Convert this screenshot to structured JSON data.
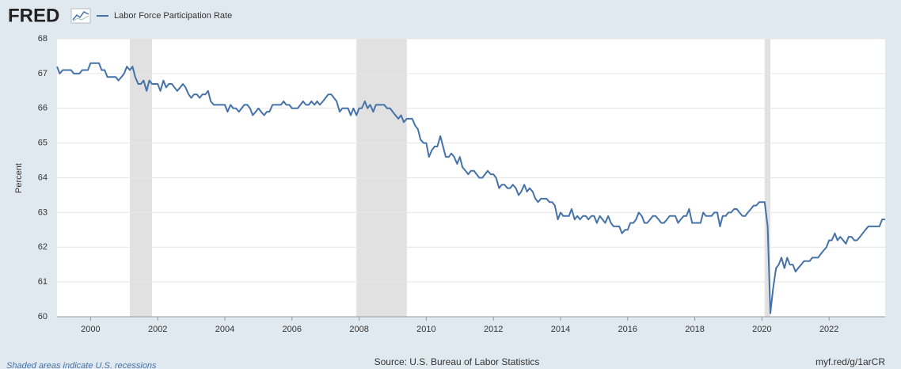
{
  "logo": "FRED",
  "chart_data": {
    "type": "line",
    "y_label": "Percent",
    "note": "Shaded areas indicate U.S. recessions",
    "source": "Source: U.S. Bureau of Labor Statistics",
    "link": "myf.red/g/1arCR",
    "xlim": [
      1999,
      2023.67
    ],
    "xticks": [
      2000,
      2002,
      2004,
      2006,
      2008,
      2010,
      2012,
      2014,
      2016,
      2018,
      2020,
      2022
    ],
    "ylim": [
      60,
      68
    ],
    "yticks": [
      60,
      61,
      62,
      63,
      64,
      65,
      66,
      67,
      68
    ],
    "grid": true,
    "recession_color": "#e1e1e1",
    "recessions": [
      [
        2001.17,
        2001.83
      ],
      [
        2007.92,
        2009.42
      ],
      [
        2020.08,
        2020.25
      ]
    ],
    "x": [
      1999,
      1999.08,
      1999.17,
      1999.25,
      1999.33,
      1999.42,
      1999.5,
      1999.58,
      1999.67,
      1999.75,
      1999.83,
      1999.92,
      2000,
      2000.08,
      2000.17,
      2000.25,
      2000.33,
      2000.42,
      2000.5,
      2000.58,
      2000.67,
      2000.75,
      2000.83,
      2000.92,
      2001,
      2001.08,
      2001.17,
      2001.25,
      2001.33,
      2001.42,
      2001.5,
      2001.58,
      2001.67,
      2001.75,
      2001.83,
      2001.92,
      2002,
      2002.08,
      2002.17,
      2002.25,
      2002.33,
      2002.42,
      2002.5,
      2002.58,
      2002.67,
      2002.75,
      2002.83,
      2002.92,
      2003,
      2003.08,
      2003.17,
      2003.25,
      2003.33,
      2003.42,
      2003.5,
      2003.58,
      2003.67,
      2003.75,
      2003.83,
      2003.92,
      2004,
      2004.08,
      2004.17,
      2004.25,
      2004.33,
      2004.42,
      2004.5,
      2004.58,
      2004.67,
      2004.75,
      2004.83,
      2004.92,
      2005,
      2005.08,
      2005.17,
      2005.25,
      2005.33,
      2005.42,
      2005.5,
      2005.58,
      2005.67,
      2005.75,
      2005.83,
      2005.92,
      2006,
      2006.08,
      2006.17,
      2006.25,
      2006.33,
      2006.42,
      2006.5,
      2006.58,
      2006.67,
      2006.75,
      2006.83,
      2006.92,
      2007,
      2007.08,
      2007.17,
      2007.25,
      2007.33,
      2007.42,
      2007.5,
      2007.58,
      2007.67,
      2007.75,
      2007.83,
      2007.92,
      2008,
      2008.08,
      2008.17,
      2008.25,
      2008.33,
      2008.42,
      2008.5,
      2008.58,
      2008.67,
      2008.75,
      2008.83,
      2008.92,
      2009,
      2009.08,
      2009.17,
      2009.25,
      2009.33,
      2009.42,
      2009.5,
      2009.58,
      2009.67,
      2009.75,
      2009.83,
      2009.92,
      2010,
      2010.08,
      2010.17,
      2010.25,
      2010.33,
      2010.42,
      2010.5,
      2010.58,
      2010.67,
      2010.75,
      2010.83,
      2010.92,
      2011,
      2011.08,
      2011.17,
      2011.25,
      2011.33,
      2011.42,
      2011.5,
      2011.58,
      2011.67,
      2011.75,
      2011.83,
      2011.92,
      2012,
      2012.08,
      2012.17,
      2012.25,
      2012.33,
      2012.42,
      2012.5,
      2012.58,
      2012.67,
      2012.75,
      2012.83,
      2012.92,
      2013,
      2013.08,
      2013.17,
      2013.25,
      2013.33,
      2013.42,
      2013.5,
      2013.58,
      2013.67,
      2013.75,
      2013.83,
      2013.92,
      2014,
      2014.08,
      2014.17,
      2014.25,
      2014.33,
      2014.42,
      2014.5,
      2014.58,
      2014.67,
      2014.75,
      2014.83,
      2014.92,
      2015,
      2015.08,
      2015.17,
      2015.25,
      2015.33,
      2015.42,
      2015.5,
      2015.58,
      2015.67,
      2015.75,
      2015.83,
      2015.92,
      2016,
      2016.08,
      2016.17,
      2016.25,
      2016.33,
      2016.42,
      2016.5,
      2016.58,
      2016.67,
      2016.75,
      2016.83,
      2016.92,
      2017,
      2017.08,
      2017.17,
      2017.25,
      2017.33,
      2017.42,
      2017.5,
      2017.58,
      2017.67,
      2017.75,
      2017.83,
      2017.92,
      2018,
      2018.08,
      2018.17,
      2018.25,
      2018.33,
      2018.42,
      2018.5,
      2018.58,
      2018.67,
      2018.75,
      2018.83,
      2018.92,
      2019,
      2019.08,
      2019.17,
      2019.25,
      2019.33,
      2019.42,
      2019.5,
      2019.58,
      2019.67,
      2019.75,
      2019.83,
      2019.92,
      2020,
      2020.08,
      2020.17,
      2020.25,
      2020.33,
      2020.42,
      2020.5,
      2020.58,
      2020.67,
      2020.75,
      2020.83,
      2020.92,
      2021,
      2021.08,
      2021.17,
      2021.25,
      2021.33,
      2021.42,
      2021.5,
      2021.58,
      2021.67,
      2021.75,
      2021.83,
      2021.92,
      2022,
      2022.08,
      2022.17,
      2022.25,
      2022.33,
      2022.42,
      2022.5,
      2022.58,
      2022.67,
      2022.75,
      2022.83,
      2022.92,
      2023,
      2023.08,
      2023.17,
      2023.25,
      2023.33,
      2023.42,
      2023.5,
      2023.58,
      2023.67
    ],
    "series": [
      {
        "name": "Labor Force Participation Rate",
        "color": "#4572a7",
        "values": [
          67.2,
          67.0,
          67.1,
          67.1,
          67.1,
          67.1,
          67.0,
          67.0,
          67.0,
          67.1,
          67.1,
          67.1,
          67.3,
          67.3,
          67.3,
          67.3,
          67.1,
          67.1,
          66.9,
          66.9,
          66.9,
          66.9,
          66.8,
          66.9,
          67.0,
          67.2,
          67.1,
          67.2,
          66.9,
          66.7,
          66.7,
          66.8,
          66.5,
          66.8,
          66.7,
          66.7,
          66.7,
          66.5,
          66.8,
          66.6,
          66.7,
          66.7,
          66.6,
          66.5,
          66.6,
          66.7,
          66.6,
          66.4,
          66.3,
          66.4,
          66.4,
          66.3,
          66.4,
          66.4,
          66.5,
          66.2,
          66.1,
          66.1,
          66.1,
          66.1,
          66.1,
          65.9,
          66.1,
          66.0,
          66.0,
          65.9,
          66.0,
          66.1,
          66.1,
          66.0,
          65.8,
          65.9,
          66.0,
          65.9,
          65.8,
          65.9,
          65.9,
          66.1,
          66.1,
          66.1,
          66.1,
          66.2,
          66.1,
          66.1,
          66.0,
          66.0,
          66.0,
          66.1,
          66.2,
          66.1,
          66.1,
          66.2,
          66.1,
          66.2,
          66.1,
          66.2,
          66.3,
          66.4,
          66.4,
          66.3,
          66.2,
          65.9,
          66.0,
          66.0,
          66.0,
          65.8,
          66.0,
          65.8,
          66.0,
          66.0,
          66.2,
          66.0,
          66.1,
          65.9,
          66.1,
          66.1,
          66.1,
          66.1,
          66.0,
          66.0,
          65.9,
          65.8,
          65.7,
          65.8,
          65.6,
          65.7,
          65.7,
          65.7,
          65.5,
          65.4,
          65.1,
          65.0,
          65.0,
          64.6,
          64.8,
          64.9,
          64.9,
          65.2,
          64.9,
          64.6,
          64.6,
          64.7,
          64.6,
          64.4,
          64.6,
          64.3,
          64.2,
          64.1,
          64.2,
          64.2,
          64.1,
          64.0,
          64.0,
          64.1,
          64.2,
          64.1,
          64.1,
          64.0,
          63.7,
          63.8,
          63.8,
          63.7,
          63.7,
          63.8,
          63.7,
          63.5,
          63.6,
          63.8,
          63.6,
          63.7,
          63.6,
          63.4,
          63.3,
          63.4,
          63.4,
          63.4,
          63.3,
          63.3,
          63.2,
          62.8,
          63.0,
          62.9,
          62.9,
          62.9,
          63.1,
          62.8,
          62.9,
          62.8,
          62.9,
          62.9,
          62.8,
          62.9,
          62.9,
          62.7,
          62.9,
          62.8,
          62.7,
          62.9,
          62.7,
          62.6,
          62.6,
          62.6,
          62.4,
          62.5,
          62.5,
          62.7,
          62.7,
          62.8,
          63.0,
          62.9,
          62.7,
          62.7,
          62.8,
          62.9,
          62.9,
          62.8,
          62.7,
          62.7,
          62.8,
          62.9,
          62.9,
          62.9,
          62.7,
          62.8,
          62.9,
          62.9,
          63.1,
          62.7,
          62.7,
          62.7,
          62.7,
          63.0,
          62.9,
          62.9,
          62.9,
          63.0,
          63.0,
          62.6,
          62.9,
          62.9,
          63.0,
          63.0,
          63.1,
          63.1,
          63.0,
          62.9,
          62.9,
          63.0,
          63.1,
          63.2,
          63.2,
          63.3,
          63.3,
          63.3,
          62.6,
          60.1,
          60.8,
          61.4,
          61.5,
          61.7,
          61.4,
          61.7,
          61.5,
          61.5,
          61.3,
          61.4,
          61.5,
          61.6,
          61.6,
          61.6,
          61.7,
          61.7,
          61.7,
          61.8,
          61.9,
          62.0,
          62.2,
          62.2,
          62.4,
          62.2,
          62.3,
          62.2,
          62.1,
          62.3,
          62.3,
          62.2,
          62.2,
          62.3,
          62.4,
          62.5,
          62.6,
          62.6,
          62.6,
          62.6,
          62.6,
          62.8,
          62.8
        ]
      }
    ]
  }
}
